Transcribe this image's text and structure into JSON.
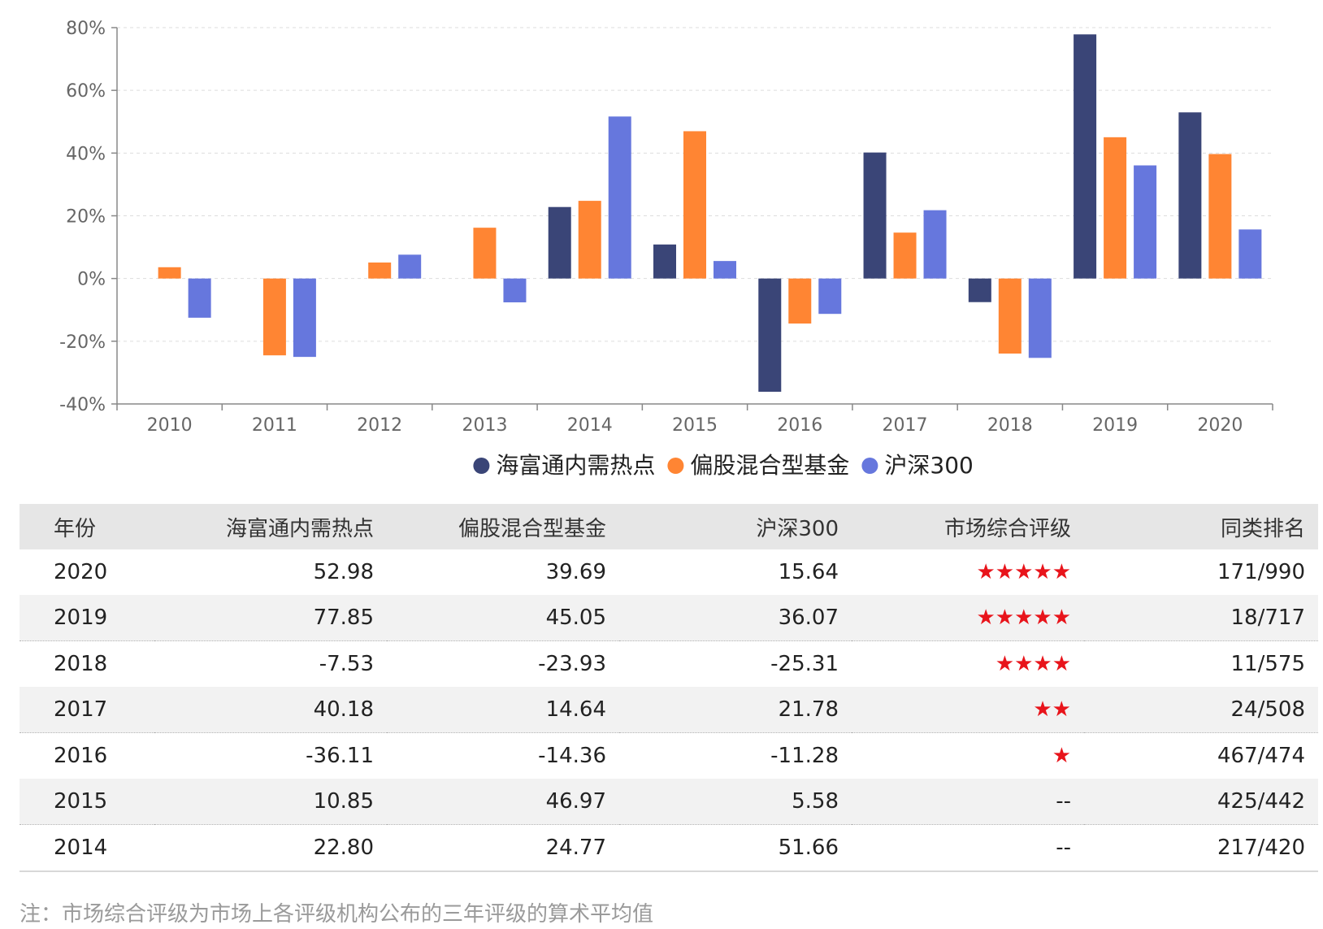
{
  "chart_data": {
    "type": "bar",
    "categories": [
      "2010",
      "2011",
      "2012",
      "2013",
      "2014",
      "2015",
      "2016",
      "2017",
      "2018",
      "2019",
      "2020"
    ],
    "series": [
      {
        "name": "海富通内需热点",
        "color": "#3a4577",
        "values": [
          null,
          null,
          null,
          null,
          22.8,
          10.85,
          -36.11,
          40.18,
          -7.53,
          77.85,
          52.98
        ]
      },
      {
        "name": "偏股混合型基金",
        "color": "#ff8533",
        "values": [
          3.6,
          -24.5,
          5.1,
          16.2,
          24.77,
          46.97,
          -14.36,
          14.64,
          -23.93,
          45.05,
          39.69
        ]
      },
      {
        "name": "沪深300",
        "color": "#6677dd",
        "values": [
          -12.5,
          -25.0,
          7.6,
          -7.6,
          51.66,
          5.58,
          -11.28,
          21.78,
          -25.31,
          36.07,
          15.64
        ]
      }
    ],
    "yticks": [
      "80%",
      "60%",
      "40%",
      "20%",
      "0%",
      "-20%",
      "-40%"
    ],
    "ylim": [
      -40,
      80
    ],
    "grid": true,
    "legend_position": "bottom"
  },
  "table": {
    "headers": [
      "年份",
      "海富通内需热点",
      "偏股混合型基金",
      "沪深300",
      "市场综合评级",
      "同类排名"
    ],
    "rows": [
      [
        "2020",
        "52.98",
        "39.69",
        "15.64",
        "★★★★★",
        "171/990"
      ],
      [
        "2019",
        "77.85",
        "45.05",
        "36.07",
        "★★★★★",
        "18/717"
      ],
      [
        "2018",
        "-7.53",
        "-23.93",
        "-25.31",
        "★★★★",
        "11/575"
      ],
      [
        "2017",
        "40.18",
        "14.64",
        "21.78",
        "★★",
        "24/508"
      ],
      [
        "2016",
        "-36.11",
        "-14.36",
        "-11.28",
        "★",
        "467/474"
      ],
      [
        "2015",
        "10.85",
        "46.97",
        "5.58",
        "--",
        "425/442"
      ],
      [
        "2014",
        "22.80",
        "24.77",
        "51.66",
        "--",
        "217/420"
      ]
    ]
  },
  "footnote": "注：市场综合评级为市场上各评级机构公布的三年评级的算术平均值",
  "colors": {
    "star": "#e8141b",
    "header_bg": "#e6e6e6",
    "row_shade": "#f2f2f2",
    "grid": "#dddddd",
    "axis": "#888888"
  }
}
